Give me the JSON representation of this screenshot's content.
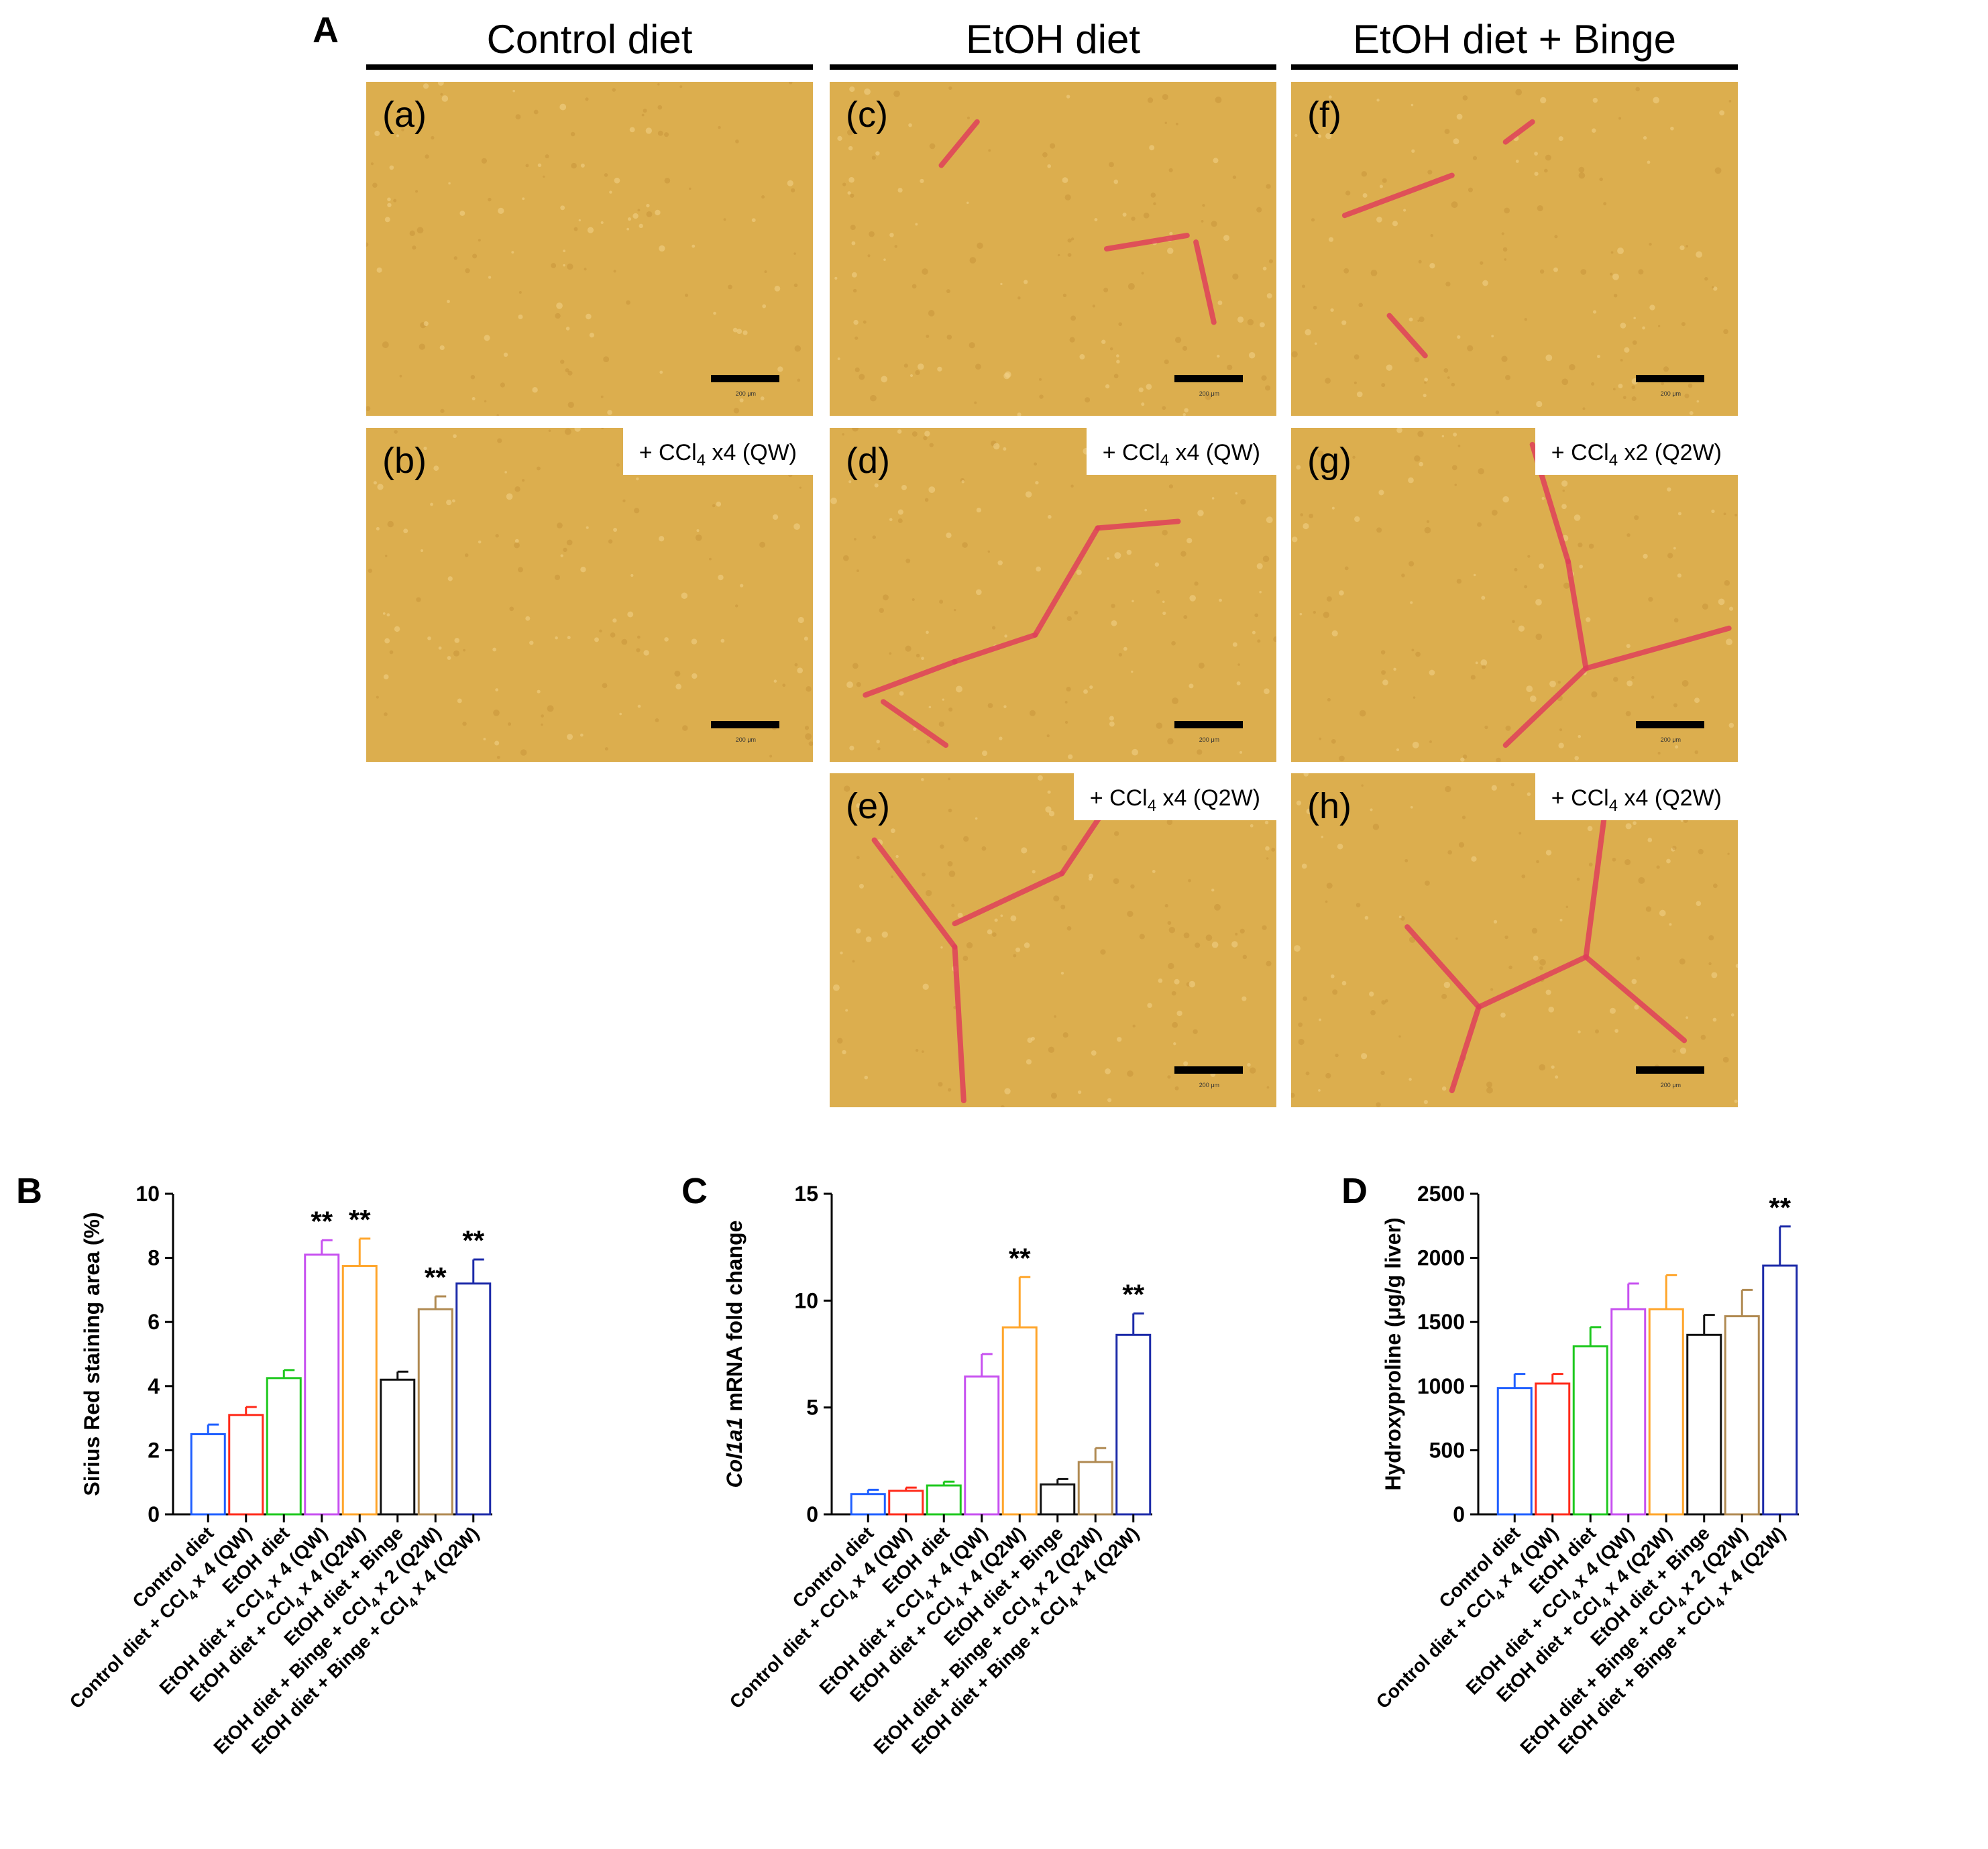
{
  "panel_a": {
    "letter": "A",
    "columns": [
      "Control diet",
      "EtOH diet",
      "EtOH diet + Binge"
    ],
    "images": [
      {
        "id": "a",
        "label": "(a)",
        "treatment": null
      },
      {
        "id": "b",
        "label": "(b)",
        "treatment": {
          "pre": "+ CCl",
          "sub": "4",
          "post": " x4 (QW)"
        }
      },
      {
        "id": "c",
        "label": "(c)",
        "treatment": null
      },
      {
        "id": "d",
        "label": "(d)",
        "treatment": {
          "pre": "+ CCl",
          "sub": "4",
          "post": " x4 (QW)"
        }
      },
      {
        "id": "e",
        "label": "(e)",
        "treatment": {
          "pre": "+ CCl",
          "sub": "4",
          "post": " x4 (Q2W)"
        }
      },
      {
        "id": "f",
        "label": "(f)",
        "treatment": null
      },
      {
        "id": "g",
        "label": "(g)",
        "treatment": {
          "pre": "+ CCl",
          "sub": "4",
          "post": " x2 (Q2W)"
        }
      },
      {
        "id": "h",
        "label": "(h)",
        "treatment": {
          "pre": "+ CCl",
          "sub": "4",
          "post": " x4 (Q2W)"
        }
      }
    ],
    "scale_bar_text": "200 μm"
  },
  "categories": [
    {
      "pre": "Control diet",
      "sub": "",
      "post": ""
    },
    {
      "pre": "Control diet + CCl",
      "sub": "4",
      "post": " x 4 (QW)"
    },
    {
      "pre": "EtOH diet",
      "sub": "",
      "post": ""
    },
    {
      "pre": "EtOH diet + CCl",
      "sub": "4",
      "post": " x 4 (QW)"
    },
    {
      "pre": "EtOH diet + CCl",
      "sub": "4",
      "post": " x 4 (Q2W)"
    },
    {
      "pre": "EtOH diet + Binge",
      "sub": "",
      "post": ""
    },
    {
      "pre": "EtOH diet + Binge + CCl",
      "sub": "4",
      "post": " x 2 (Q2W)"
    },
    {
      "pre": "EtOH diet + Binge + CCl",
      "sub": "4",
      "post": " x 4 (Q2W)"
    }
  ],
  "colors": [
    "#1f5fff",
    "#ff2a1a",
    "#1ec81e",
    "#c750f0",
    "#ffa52a",
    "#111111",
    "#b08a52",
    "#1c2aa8"
  ],
  "chart_data": [
    {
      "panel": "B",
      "type": "bar",
      "ylabel": "Sirius Red staining area (%)",
      "ylabel_italic": "",
      "ylim": [
        0,
        10
      ],
      "yticks": [
        0,
        2,
        4,
        6,
        8,
        10
      ],
      "values": [
        2.5,
        3.1,
        4.25,
        8.1,
        7.75,
        4.2,
        6.4,
        7.2
      ],
      "errors": [
        0.3,
        0.25,
        0.25,
        0.45,
        0.85,
        0.25,
        0.4,
        0.75
      ],
      "significance": [
        "",
        "",
        "",
        "**",
        "**",
        "",
        "**",
        "**"
      ]
    },
    {
      "panel": "C",
      "type": "bar",
      "ylabel": " mRNA fold change",
      "ylabel_italic": "Col1a1",
      "ylim": [
        0,
        15
      ],
      "yticks": [
        0,
        5,
        10,
        15
      ],
      "values": [
        0.95,
        1.1,
        1.35,
        6.45,
        8.75,
        1.4,
        2.45,
        8.4
      ],
      "errors": [
        0.2,
        0.15,
        0.18,
        1.05,
        2.35,
        0.25,
        0.65,
        1.0
      ],
      "significance": [
        "",
        "",
        "",
        "",
        "**",
        "",
        "",
        "**"
      ]
    },
    {
      "panel": "D",
      "type": "bar",
      "ylabel": "Hydroxyproline (μg/g liver)",
      "ylabel_italic": "",
      "ylim": [
        0,
        2500
      ],
      "yticks": [
        0,
        500,
        1000,
        1500,
        2000,
        2500
      ],
      "values": [
        985,
        1020,
        1310,
        1600,
        1600,
        1400,
        1545,
        1940
      ],
      "errors": [
        110,
        75,
        150,
        200,
        265,
        155,
        205,
        305
      ],
      "significance": [
        "",
        "",
        "",
        "",
        "",
        "",
        "",
        "**"
      ]
    }
  ]
}
